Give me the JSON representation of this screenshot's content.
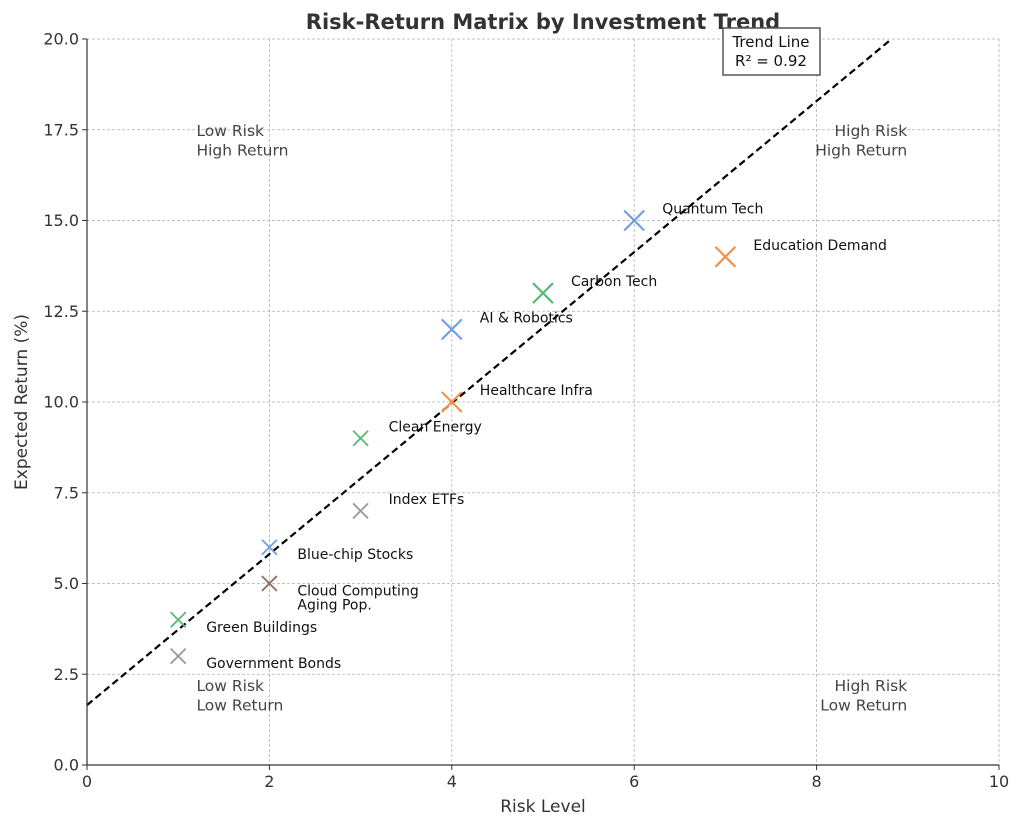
{
  "chart_data": {
    "type": "scatter",
    "title": "Risk-Return Matrix by Investment Trend",
    "xlabel": "Risk Level",
    "ylabel": "Expected Return (%)",
    "xlim": [
      0,
      10
    ],
    "ylim": [
      0,
      20
    ],
    "x_ticks": [
      "0",
      "2",
      "4",
      "6",
      "8",
      "10"
    ],
    "y_ticks": [
      "0.0",
      "2.5",
      "5.0",
      "7.5",
      "10.0",
      "12.5",
      "15.0",
      "17.5",
      "20.0"
    ],
    "grid": true,
    "marker": "x",
    "points": [
      {
        "label": "Government Bonds",
        "x": 1,
        "y": 3,
        "color": "#999999"
      },
      {
        "label": "Green Buildings",
        "x": 1,
        "y": 4,
        "color": "#57b96f"
      },
      {
        "label": "Cloud Computing",
        "x": 2,
        "y": 5,
        "color": "#8c6d62"
      },
      {
        "label": "Aging Pop.",
        "x": 2,
        "y": 5,
        "color": "#8c6d62"
      },
      {
        "label": "Blue-chip Stocks",
        "x": 2,
        "y": 6,
        "color": "#6f9fe6"
      },
      {
        "label": "Index ETFs",
        "x": 3,
        "y": 7,
        "color": "#999999"
      },
      {
        "label": "Clean Energy",
        "x": 3,
        "y": 9,
        "color": "#57b96f"
      },
      {
        "label": "Healthcare Infra",
        "x": 4,
        "y": 10,
        "color": "#f0944d"
      },
      {
        "label": "AI & Robotics",
        "x": 4,
        "y": 12,
        "color": "#6f9fe6"
      },
      {
        "label": "Carbon Tech",
        "x": 5,
        "y": 13,
        "color": "#57b96f"
      },
      {
        "label": "Quantum Tech",
        "x": 6,
        "y": 15,
        "color": "#6f9fe6"
      },
      {
        "label": "Education Demand",
        "x": 7,
        "y": 14,
        "color": "#f0944d"
      }
    ],
    "trend_line": {
      "label": "Trend Line",
      "r2_text": "R² = 0.92",
      "slope": 2.08,
      "intercept": 1.65,
      "color": "#000000",
      "style": "dashed"
    },
    "legend_position": "top-right",
    "quadrant_labels": [
      {
        "lines": [
          "Low Risk",
          "High Return"
        ],
        "x": 1.2,
        "y": 17.5,
        "align": "start"
      },
      {
        "lines": [
          "High Risk",
          "High Return"
        ],
        "x": 8.5,
        "y": 17.5,
        "align": "end"
      },
      {
        "lines": [
          "Low Risk",
          "Low Return"
        ],
        "x": 1.2,
        "y": 2.2,
        "align": "start"
      },
      {
        "lines": [
          "High Risk",
          "Low Return"
        ],
        "x": 8.5,
        "y": 2.2,
        "align": "end"
      }
    ]
  }
}
